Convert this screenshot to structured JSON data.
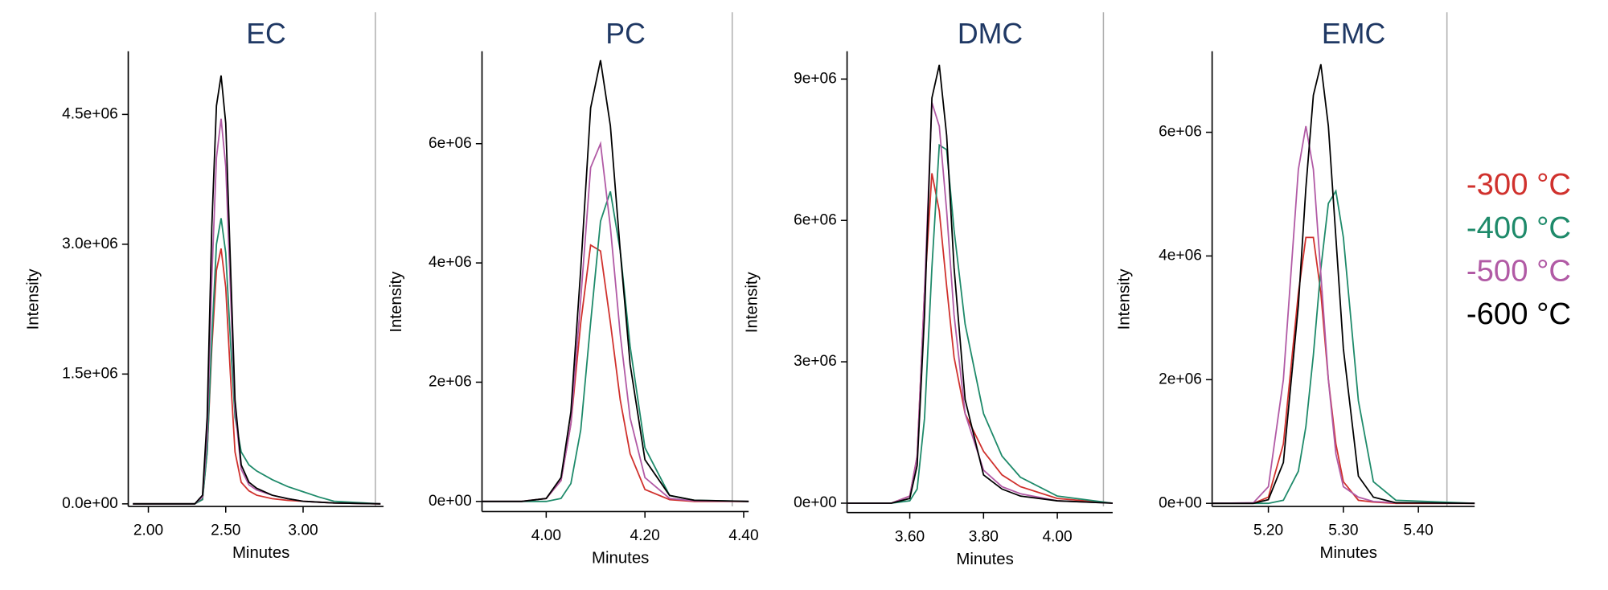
{
  "chart_data": [
    {
      "type": "line",
      "title": "EC",
      "x_label": "Minutes",
      "y_label": "Intensity",
      "xlim": [
        1.87,
        3.52
      ],
      "xticks": [
        {
          "value": 2,
          "label": "2.00"
        },
        {
          "value": 2.5,
          "label": "2.50"
        },
        {
          "value": 3,
          "label": "3.00"
        }
      ],
      "ylim": [
        -30000,
        5230000
      ],
      "yticks": [
        {
          "value": 0,
          "label": "0.0e+00"
        },
        {
          "value": 1500000,
          "label": "1.5e+06"
        },
        {
          "value": 3000000,
          "label": "3.0e+06"
        },
        {
          "value": 4500000,
          "label": "4.5e+06"
        }
      ],
      "x": [
        1.9,
        2.3,
        2.35,
        2.38,
        2.41,
        2.44,
        2.47,
        2.5,
        2.53,
        2.56,
        2.6,
        2.65,
        2.7,
        2.8,
        2.9,
        3.0,
        3.1,
        3.2,
        3.5
      ],
      "series": [
        {
          "name": "-300 °C",
          "color": "#d0312d",
          "values": [
            0,
            0,
            50000,
            600000,
            1800000,
            2700000,
            2950000,
            2500000,
            1500000,
            600000,
            250000,
            150000,
            100000,
            60000,
            40000,
            30000,
            20000,
            10000,
            0
          ]
        },
        {
          "name": "-400 °C",
          "color": "#1e8a6a",
          "values": [
            0,
            0,
            50000,
            600000,
            1900000,
            3000000,
            3300000,
            2900000,
            1900000,
            1000000,
            600000,
            450000,
            380000,
            280000,
            200000,
            140000,
            80000,
            30000,
            0
          ]
        },
        {
          "name": "-500 °C",
          "color": "#b15aa5",
          "values": [
            0,
            0,
            80000,
            800000,
            2600000,
            4000000,
            4450000,
            3900000,
            2500000,
            1100000,
            400000,
            220000,
            160000,
            100000,
            60000,
            30000,
            20000,
            10000,
            0
          ]
        },
        {
          "name": "-600 °C",
          "color": "#000000",
          "values": [
            0,
            0,
            100000,
            1000000,
            3200000,
            4600000,
            4950000,
            4400000,
            2800000,
            1200000,
            450000,
            250000,
            180000,
            100000,
            60000,
            30000,
            20000,
            10000,
            0
          ]
        }
      ]
    },
    {
      "type": "line",
      "title": "PC",
      "x_label": "Minutes",
      "y_label": "Intensity",
      "xlim": [
        3.87,
        4.41
      ],
      "xticks": [
        {
          "value": 4,
          "label": "4.00"
        },
        {
          "value": 4.2,
          "label": "4.20"
        },
        {
          "value": 4.4,
          "label": "4.40"
        }
      ],
      "ylim": [
        -170000,
        7550000
      ],
      "yticks": [
        {
          "value": 0,
          "label": "0e+00"
        },
        {
          "value": 2000000,
          "label": "2e+06"
        },
        {
          "value": 4000000,
          "label": "4e+06"
        },
        {
          "value": 6000000,
          "label": "6e+06"
        }
      ],
      "x": [
        3.87,
        3.95,
        4.0,
        4.03,
        4.05,
        4.07,
        4.09,
        4.11,
        4.13,
        4.15,
        4.17,
        4.2,
        4.25,
        4.3,
        4.41
      ],
      "series": [
        {
          "name": "-300 °C",
          "color": "#d0312d",
          "values": [
            0,
            0,
            50000,
            350000,
            1300000,
            3000000,
            4300000,
            4200000,
            3000000,
            1700000,
            800000,
            200000,
            30000,
            0,
            0
          ]
        },
        {
          "name": "-400 °C",
          "color": "#1e8a6a",
          "values": [
            0,
            0,
            0,
            50000,
            300000,
            1200000,
            3000000,
            4700000,
            5200000,
            4200000,
            2600000,
            900000,
            100000,
            20000,
            0
          ]
        },
        {
          "name": "-500 °C",
          "color": "#b15aa5",
          "values": [
            0,
            0,
            50000,
            350000,
            1300000,
            3400000,
            5600000,
            6000000,
            4600000,
            2800000,
            1400000,
            400000,
            50000,
            10000,
            0
          ]
        },
        {
          "name": "-600 °C",
          "color": "#000000",
          "values": [
            0,
            0,
            50000,
            400000,
            1500000,
            3900000,
            6600000,
            7400000,
            6300000,
            4200000,
            2300000,
            700000,
            100000,
            20000,
            0
          ]
        }
      ]
    },
    {
      "type": "line",
      "title": "DMC",
      "x_label": "Minutes",
      "y_label": "Intensity",
      "xlim": [
        3.43,
        4.15
      ],
      "xticks": [
        {
          "value": 3.6,
          "label": "3.60"
        },
        {
          "value": 3.8,
          "label": "3.80"
        },
        {
          "value": 4,
          "label": "4.00"
        }
      ],
      "ylim": [
        -200000,
        9590000
      ],
      "yticks": [
        {
          "value": 0,
          "label": "0e+00"
        },
        {
          "value": 3000000,
          "label": "3e+06"
        },
        {
          "value": 6000000,
          "label": "6e+06"
        },
        {
          "value": 9000000,
          "label": "9e+06"
        }
      ],
      "x": [
        3.43,
        3.55,
        3.6,
        3.62,
        3.64,
        3.66,
        3.68,
        3.7,
        3.72,
        3.75,
        3.8,
        3.85,
        3.9,
        4.0,
        4.15
      ],
      "series": [
        {
          "name": "-300 °C",
          "color": "#d0312d",
          "values": [
            0,
            0,
            150000,
            1000000,
            4500000,
            7000000,
            6200000,
            4600000,
            3100000,
            1900000,
            1100000,
            600000,
            350000,
            100000,
            0
          ]
        },
        {
          "name": "-400 °C",
          "color": "#1e8a6a",
          "values": [
            0,
            0,
            50000,
            300000,
            1800000,
            5000000,
            7600000,
            7500000,
            5800000,
            3800000,
            1900000,
            1000000,
            550000,
            150000,
            0
          ]
        },
        {
          "name": "-500 °C",
          "color": "#b15aa5",
          "values": [
            0,
            0,
            150000,
            1000000,
            4500000,
            8500000,
            8000000,
            6200000,
            4000000,
            1900000,
            700000,
            350000,
            200000,
            50000,
            0
          ]
        },
        {
          "name": "-600 °C",
          "color": "#000000",
          "values": [
            0,
            0,
            100000,
            800000,
            4000000,
            8600000,
            9300000,
            7800000,
            5000000,
            2200000,
            600000,
            300000,
            150000,
            50000,
            0
          ]
        }
      ]
    },
    {
      "type": "line",
      "title": "EMC",
      "x_label": "Minutes",
      "y_label": "Intensity",
      "xlim": [
        5.125,
        5.475
      ],
      "xticks": [
        {
          "value": 5.2,
          "label": "5.20"
        },
        {
          "value": 5.3,
          "label": "5.30"
        },
        {
          "value": 5.4,
          "label": "5.40"
        }
      ],
      "ylim": [
        -50000,
        7310000
      ],
      "yticks": [
        {
          "value": 0,
          "label": "0e+00"
        },
        {
          "value": 2000000,
          "label": "2e+06"
        },
        {
          "value": 4000000,
          "label": "4e+06"
        },
        {
          "value": 6000000,
          "label": "6e+06"
        }
      ],
      "x": [
        5.125,
        5.18,
        5.2,
        5.22,
        5.24,
        5.25,
        5.26,
        5.27,
        5.28,
        5.29,
        5.3,
        5.32,
        5.34,
        5.37,
        5.475
      ],
      "series": [
        {
          "name": "-300 °C",
          "color": "#d0312d",
          "values": [
            0,
            0,
            100000,
            960000,
            3400000,
            4300000,
            4300000,
            3400000,
            2000000,
            960000,
            350000,
            50000,
            20000,
            0,
            0
          ]
        },
        {
          "name": "-400 °C",
          "color": "#1e8a6a",
          "values": [
            0,
            0,
            0,
            50000,
            520000,
            1240000,
            2400000,
            3800000,
            4850000,
            5050000,
            4300000,
            1660000,
            350000,
            50000,
            0
          ]
        },
        {
          "name": "-500 °C",
          "color": "#b15aa5",
          "values": [
            0,
            10000,
            270000,
            2000000,
            5400000,
            6100000,
            5400000,
            3700000,
            2000000,
            800000,
            270000,
            100000,
            30000,
            10000,
            0
          ]
        },
        {
          "name": "-600 °C",
          "color": "#000000",
          "values": [
            0,
            0,
            60000,
            660000,
            3200000,
            5100000,
            6600000,
            7100000,
            6100000,
            4300000,
            2500000,
            440000,
            100000,
            10000,
            0
          ]
        }
      ]
    }
  ]
}
